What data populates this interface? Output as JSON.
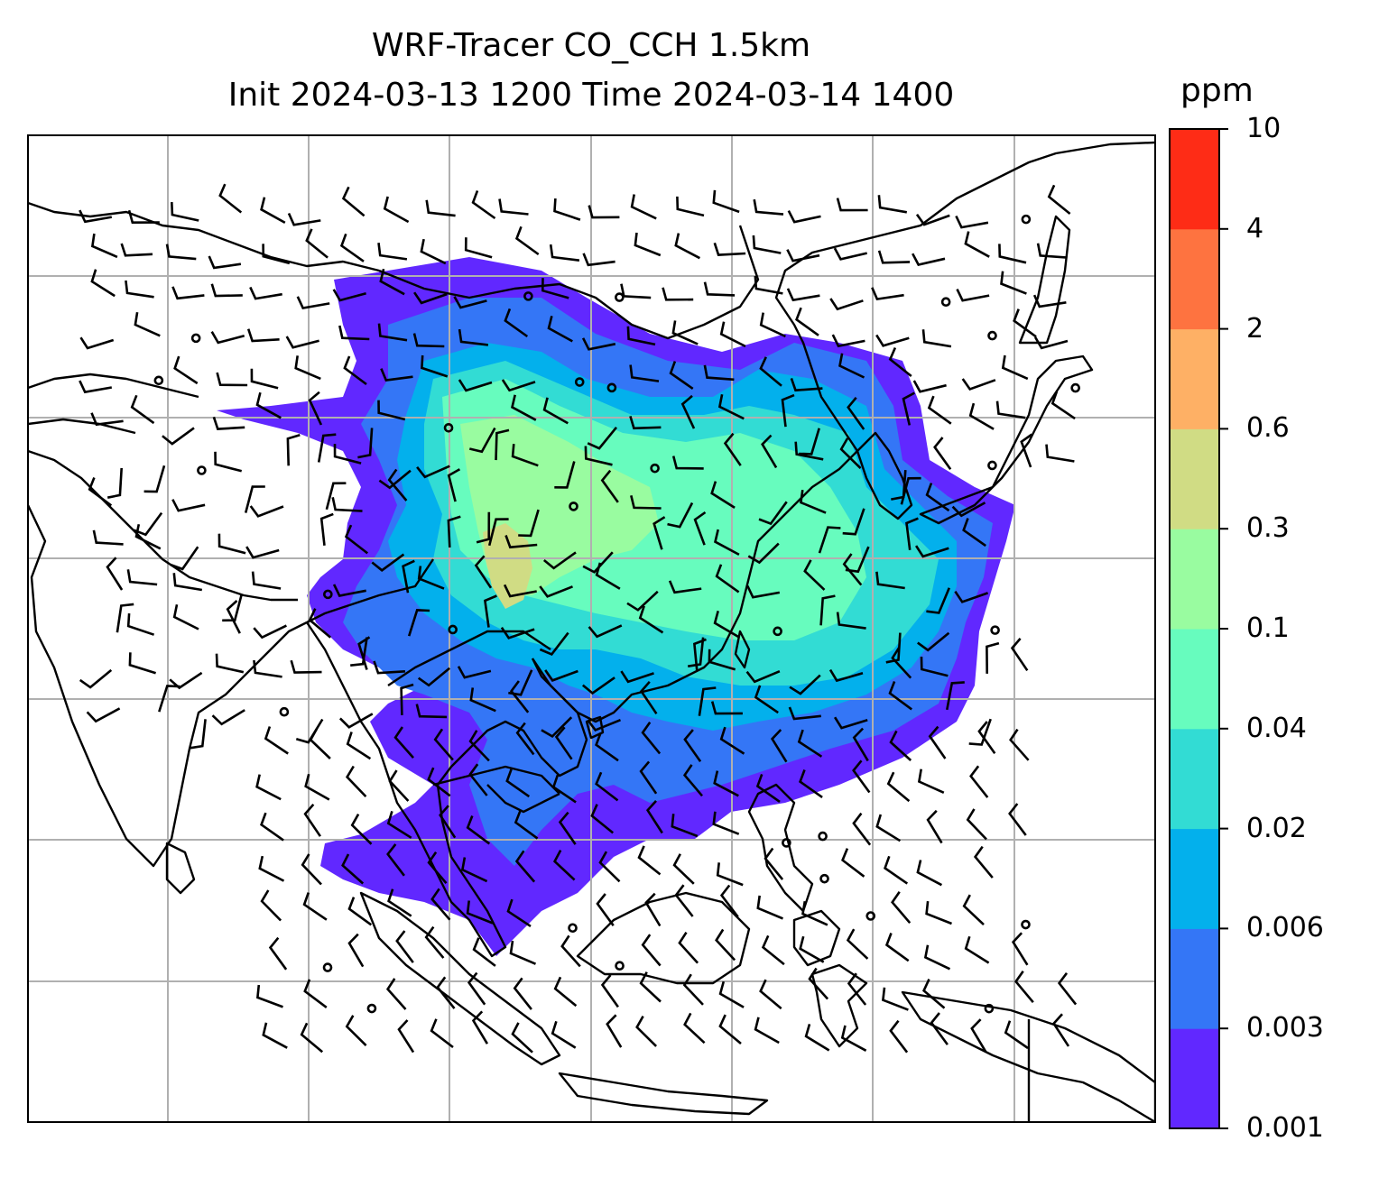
{
  "title": {
    "line1": "WRF-Tracer CO_CCH 1.5km",
    "line2": "Init 2024-03-13 1200 Time 2024-03-14 1400"
  },
  "colorbar": {
    "unit": "ppm",
    "ticks": [
      "0.001",
      "0.003",
      "0.006",
      "0.02",
      "0.04",
      "0.1",
      "0.3",
      "0.6",
      "2",
      "4",
      "10"
    ],
    "colors": [
      "#6128ff",
      "#3476f6",
      "#03b0ec",
      "#32dcd4",
      "#67fcbe",
      "#99fca0",
      "#d0dc84",
      "#feb065",
      "#fe7340",
      "#fe2c16"
    ]
  },
  "map": {
    "grid": true,
    "region": "South / Southeast / East Asia",
    "overlays": [
      "coastlines",
      "country borders",
      "wind barbs",
      "tracer concentration contours"
    ],
    "plume_colors": {
      "level1": "#6128ff",
      "level2": "#3476f6",
      "level3": "#03b0ec",
      "level4": "#32dcd4",
      "level5": "#67fcbe",
      "level6": "#99fca0",
      "level7": "#d0dc84"
    }
  }
}
